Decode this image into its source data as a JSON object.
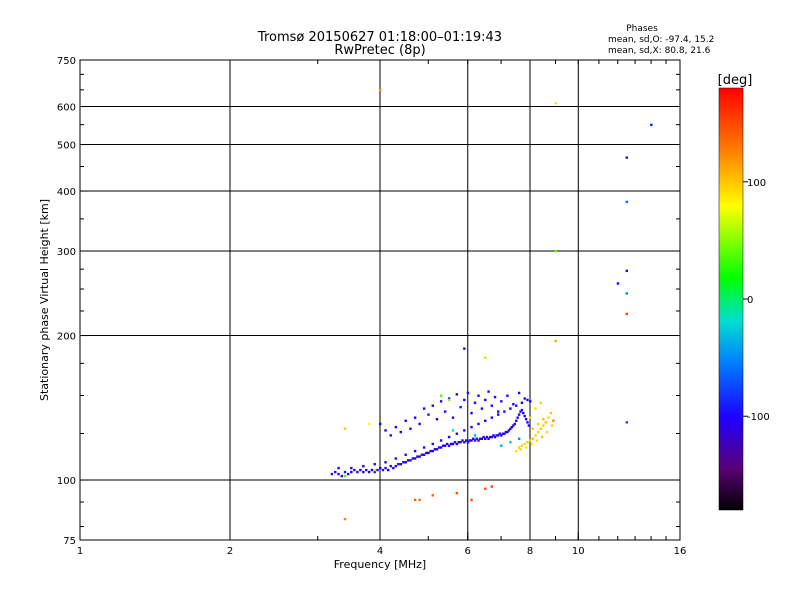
{
  "chart_data": {
    "type": "scatter",
    "title": "Tromsø 20150627 01:18:00–01:19:43",
    "subtitle": "RwPretec (8p)",
    "xlabel": "Frequency [MHz]",
    "ylabel": "Stationary phase Virtual Height [km]",
    "x_scale": "log",
    "y_scale": "log",
    "xlim": [
      1,
      16
    ],
    "ylim": [
      75,
      750
    ],
    "x_ticks": [
      {
        "value": 1,
        "label": "1"
      },
      {
        "value": 2,
        "label": "2"
      },
      {
        "value": 4,
        "label": "4"
      },
      {
        "value": 6,
        "label": "6"
      },
      {
        "value": 8,
        "label": "8"
      },
      {
        "value": 10,
        "label": "10"
      },
      {
        "value": 16,
        "label": "16"
      }
    ],
    "y_ticks": [
      {
        "value": 75,
        "label": "75"
      },
      {
        "value": 100,
        "label": "100"
      },
      {
        "value": 200,
        "label": "200"
      },
      {
        "value": 300,
        "label": "300"
      },
      {
        "value": 400,
        "label": "400"
      },
      {
        "value": 500,
        "label": "500"
      },
      {
        "value": 600,
        "label": "600"
      },
      {
        "value": 750,
        "label": "750"
      }
    ],
    "x_grid": [
      2,
      4,
      6,
      8,
      10
    ],
    "y_grid": [
      100,
      200,
      300,
      400,
      500,
      600
    ],
    "grid": true,
    "stats_header": "Phases",
    "stats": [
      "mean, sd,O: -97.4, 15.2",
      "mean, sd,X:  80.8, 21.6"
    ],
    "colorbar": {
      "label": "[deg]",
      "range": [
        -180,
        180
      ],
      "ticks": [
        {
          "value": 100,
          "label": "100"
        },
        {
          "value": 0,
          "label": "0"
        },
        {
          "value": -100,
          "label": "-100"
        }
      ]
    },
    "series": [
      {
        "marker": "small",
        "points": [
          [
            3.2,
            103,
            -105
          ],
          [
            3.25,
            104,
            -110
          ],
          [
            3.3,
            103,
            -100
          ],
          [
            3.35,
            102,
            -108
          ],
          [
            3.4,
            104,
            -95
          ],
          [
            3.45,
            103,
            -112
          ],
          [
            3.5,
            104,
            -104
          ],
          [
            3.55,
            105,
            -98
          ],
          [
            3.6,
            104,
            -110
          ],
          [
            3.65,
            105,
            -100
          ],
          [
            3.7,
            104,
            -106
          ],
          [
            3.75,
            105,
            -96
          ],
          [
            3.8,
            104,
            -108
          ],
          [
            3.85,
            105,
            -102
          ],
          [
            3.9,
            104,
            -110
          ],
          [
            3.95,
            105,
            -100
          ],
          [
            4.0,
            106,
            -104
          ],
          [
            4.05,
            105,
            -96
          ],
          [
            4.1,
            106,
            -108
          ],
          [
            4.15,
            105,
            -100
          ],
          [
            4.2,
            107,
            -110
          ],
          [
            4.25,
            106,
            -98
          ],
          [
            4.3,
            107,
            -104
          ],
          [
            4.35,
            108,
            -100
          ],
          [
            4.4,
            108,
            -108
          ],
          [
            4.45,
            109,
            -96
          ],
          [
            4.5,
            109,
            -104
          ],
          [
            4.55,
            110,
            -100
          ],
          [
            4.6,
            110,
            -110
          ],
          [
            4.65,
            111,
            -98
          ],
          [
            4.7,
            111,
            -104
          ],
          [
            4.75,
            112,
            -100
          ],
          [
            4.8,
            112,
            -108
          ],
          [
            4.85,
            113,
            -96
          ],
          [
            4.9,
            113,
            -104
          ],
          [
            4.95,
            114,
            -100
          ],
          [
            5.0,
            114,
            -110
          ],
          [
            5.05,
            115,
            -98
          ],
          [
            5.1,
            115,
            -104
          ],
          [
            5.15,
            116,
            -100
          ],
          [
            5.2,
            116,
            -108
          ],
          [
            5.25,
            117,
            -96
          ],
          [
            5.3,
            117,
            -104
          ],
          [
            5.35,
            118,
            -100
          ],
          [
            5.4,
            118,
            -110
          ],
          [
            5.45,
            119,
            -98
          ],
          [
            5.5,
            118,
            -104
          ],
          [
            5.55,
            119,
            -100
          ],
          [
            5.6,
            119,
            -108
          ],
          [
            5.65,
            120,
            -96
          ],
          [
            5.7,
            119,
            -104
          ],
          [
            5.75,
            120,
            -100
          ],
          [
            5.8,
            120,
            -110
          ],
          [
            5.85,
            121,
            -98
          ],
          [
            5.9,
            120,
            -104
          ],
          [
            5.95,
            121,
            -100
          ],
          [
            6.0,
            120,
            -108
          ],
          [
            6.05,
            121,
            -96
          ],
          [
            6.1,
            121,
            -104
          ],
          [
            6.15,
            122,
            -100
          ],
          [
            6.2,
            121,
            -110
          ],
          [
            6.25,
            122,
            -98
          ],
          [
            6.3,
            121,
            -104
          ],
          [
            6.35,
            122,
            -100
          ],
          [
            6.4,
            122,
            -108
          ],
          [
            6.45,
            123,
            -96
          ],
          [
            6.5,
            122,
            -104
          ],
          [
            6.55,
            123,
            -100
          ],
          [
            6.6,
            122,
            -110
          ],
          [
            6.65,
            123,
            -98
          ],
          [
            6.7,
            123,
            -104
          ],
          [
            6.75,
            124,
            -100
          ],
          [
            6.8,
            123,
            -108
          ],
          [
            6.85,
            124,
            -96
          ],
          [
            6.9,
            124,
            -104
          ],
          [
            6.95,
            125,
            -100
          ],
          [
            7.0,
            124,
            -110
          ],
          [
            7.05,
            125,
            -98
          ],
          [
            7.1,
            125,
            -104
          ],
          [
            7.15,
            126,
            -100
          ],
          [
            7.2,
            126,
            -108
          ],
          [
            7.25,
            127,
            -96
          ],
          [
            7.3,
            128,
            -104
          ],
          [
            7.35,
            129,
            -100
          ],
          [
            7.4,
            130,
            -110
          ],
          [
            7.45,
            131,
            -98
          ],
          [
            7.5,
            133,
            -104
          ],
          [
            7.55,
            135,
            -100
          ],
          [
            7.6,
            137,
            -108
          ],
          [
            7.65,
            139,
            -96
          ],
          [
            7.7,
            140,
            -104
          ],
          [
            7.75,
            138,
            -100
          ],
          [
            7.8,
            136,
            -110
          ],
          [
            7.85,
            134,
            -98
          ],
          [
            7.9,
            132,
            -104
          ],
          [
            7.95,
            130,
            -100
          ],
          [
            3.3,
            106,
            -100
          ],
          [
            3.5,
            106,
            -96
          ],
          [
            3.7,
            107,
            -104
          ],
          [
            3.9,
            108,
            -100
          ],
          [
            4.1,
            109,
            -110
          ],
          [
            4.3,
            111,
            -98
          ],
          [
            4.5,
            113,
            -104
          ],
          [
            4.7,
            115,
            -100
          ],
          [
            4.9,
            117,
            -108
          ],
          [
            5.1,
            119,
            -96
          ],
          [
            5.3,
            121,
            -104
          ],
          [
            5.5,
            123,
            -100
          ],
          [
            5.7,
            125,
            -110
          ],
          [
            5.9,
            127,
            -98
          ],
          [
            6.1,
            129,
            -104
          ],
          [
            6.3,
            131,
            -100
          ],
          [
            6.5,
            133,
            -108
          ],
          [
            6.7,
            135,
            -96
          ],
          [
            6.9,
            137,
            -104
          ],
          [
            7.1,
            139,
            -100
          ],
          [
            7.3,
            141,
            -110
          ],
          [
            7.5,
            143,
            -98
          ],
          [
            7.7,
            145,
            -104
          ],
          [
            7.9,
            147,
            -100
          ],
          [
            4.0,
            131,
            -100
          ],
          [
            4.1,
            127,
            -108
          ],
          [
            4.2,
            124,
            -96
          ],
          [
            4.3,
            129,
            -104
          ],
          [
            4.4,
            126,
            -100
          ],
          [
            4.5,
            133,
            -110
          ],
          [
            4.6,
            128,
            -98
          ],
          [
            4.7,
            135,
            -104
          ],
          [
            4.8,
            131,
            -100
          ],
          [
            4.9,
            141,
            -108
          ],
          [
            5.0,
            137,
            -96
          ],
          [
            5.1,
            143,
            -104
          ],
          [
            5.2,
            134,
            -100
          ],
          [
            5.3,
            146,
            -110
          ],
          [
            5.4,
            139,
            -98
          ],
          [
            5.5,
            148,
            -104
          ],
          [
            5.6,
            135,
            -100
          ],
          [
            5.7,
            151,
            -108
          ],
          [
            5.8,
            142,
            -96
          ],
          [
            5.9,
            147,
            -104
          ],
          [
            6.0,
            152,
            -100
          ],
          [
            6.1,
            138,
            -110
          ],
          [
            6.2,
            145,
            -98
          ],
          [
            6.3,
            150,
            -104
          ],
          [
            6.4,
            141,
            -100
          ],
          [
            6.5,
            147,
            -108
          ],
          [
            6.6,
            153,
            -96
          ],
          [
            6.7,
            143,
            -104
          ],
          [
            6.8,
            149,
            -100
          ],
          [
            6.9,
            139,
            -110
          ],
          [
            7.0,
            146,
            -98
          ],
          [
            7.2,
            150,
            -104
          ],
          [
            7.4,
            144,
            -100
          ],
          [
            7.6,
            152,
            -108
          ],
          [
            7.8,
            148,
            -96
          ],
          [
            8.0,
            146,
            -104
          ],
          [
            7.0,
            118,
            -40
          ],
          [
            7.3,
            120,
            -30
          ],
          [
            7.6,
            122,
            -50
          ],
          [
            5.6,
            127,
            -20
          ],
          [
            6.2,
            124,
            -35
          ],
          [
            5.9,
            188,
            -110
          ],
          [
            3.4,
            102,
            30
          ],
          [
            3.9,
            105,
            60
          ],
          [
            7.6,
            117,
            95
          ],
          [
            7.7,
            118,
            98
          ],
          [
            7.8,
            119,
            92
          ],
          [
            7.9,
            120,
            100
          ],
          [
            8.0,
            121,
            96
          ],
          [
            8.1,
            122,
            102
          ],
          [
            8.2,
            124,
            94
          ],
          [
            8.3,
            126,
            98
          ],
          [
            8.4,
            128,
            100
          ],
          [
            8.5,
            130,
            96
          ],
          [
            8.6,
            132,
            104
          ],
          [
            8.7,
            135,
            92
          ],
          [
            8.8,
            138,
            100
          ],
          [
            7.5,
            115,
            90
          ],
          [
            7.65,
            116,
            96
          ],
          [
            7.85,
            117,
            88
          ],
          [
            8.05,
            119,
            92
          ],
          [
            8.25,
            121,
            96
          ],
          [
            8.45,
            123,
            100
          ],
          [
            8.65,
            126,
            94
          ],
          [
            8.85,
            130,
            98
          ],
          [
            8.1,
            128,
            100
          ],
          [
            8.3,
            131,
            96
          ],
          [
            8.5,
            134,
            104
          ],
          [
            8.2,
            141,
            90
          ],
          [
            8.4,
            145,
            98
          ],
          [
            8.0,
            135,
            95
          ],
          [
            4.0,
            650,
            120
          ],
          [
            9.0,
            610,
            90
          ],
          [
            9.0,
            300,
            40
          ],
          [
            9.0,
            195,
            110
          ],
          [
            6.5,
            180,
            60
          ],
          [
            5.3,
            150,
            30
          ],
          [
            3.4,
            128,
            100
          ],
          [
            3.8,
            131,
            80
          ],
          [
            5.5,
            147,
            50
          ],
          [
            4.7,
            91,
            140
          ],
          [
            4.8,
            91,
            135
          ],
          [
            3.4,
            83,
            125
          ],
          [
            5.1,
            93,
            140
          ],
          [
            5.7,
            94,
            150
          ],
          [
            6.1,
            91,
            145
          ],
          [
            6.5,
            96,
            148
          ],
          [
            6.7,
            97,
            152
          ],
          [
            8.9,
            133,
            120
          ],
          [
            14.0,
            550,
            -90
          ],
          [
            12.5,
            470,
            -125
          ],
          [
            12.5,
            380,
            -60
          ],
          [
            12.5,
            273,
            -110
          ],
          [
            12.0,
            257,
            -100
          ],
          [
            12.5,
            245,
            -55
          ],
          [
            12.5,
            222,
            150
          ],
          [
            12.5,
            132,
            -70
          ]
        ]
      }
    ]
  }
}
